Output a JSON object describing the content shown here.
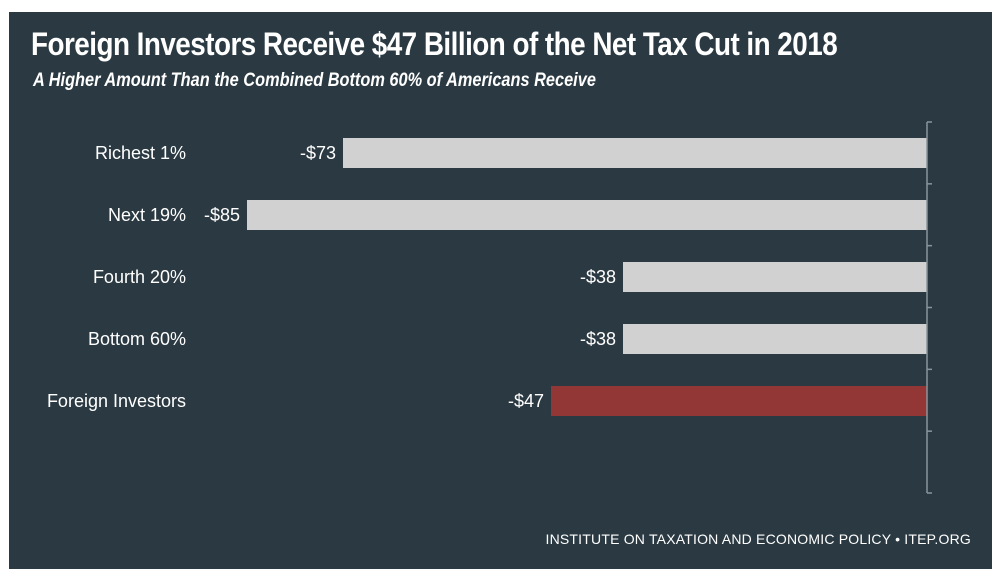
{
  "header": {
    "title": "Foreign Investors Receive $47 Billion of the Net Tax Cut in 2018",
    "subtitle": "A Higher Amount Than the Combined Bottom 60% of Americans Receive"
  },
  "footer": {
    "source": "INSTITUTE ON TAXATION AND ECONOMIC POLICY • ITEP.ORG"
  },
  "colors": {
    "background": "#2b3a42",
    "bar_default": "#d1d1d1",
    "bar_highlight": "#923735",
    "axis": "#8a959b"
  },
  "chart_data": {
    "type": "bar",
    "orientation": "horizontal",
    "title": "Foreign Investors Receive $47 Billion of the Net Tax Cut in 2018",
    "subtitle": "A Higher Amount Than the Combined Bottom 60% of Americans Receive",
    "xlabel": "",
    "ylabel": "",
    "categories": [
      "Richest 1%",
      "Next 19%",
      "Fourth 20%",
      "Bottom 60%",
      "Foreign Investors"
    ],
    "values": [
      -73,
      -85,
      -38,
      -38,
      -47
    ],
    "value_labels": [
      "-$73",
      "-$85",
      "-$38",
      "-$38",
      "-$47"
    ],
    "highlight_index": 4,
    "xlim": [
      -85,
      0
    ],
    "grid": false,
    "legend": "none"
  }
}
